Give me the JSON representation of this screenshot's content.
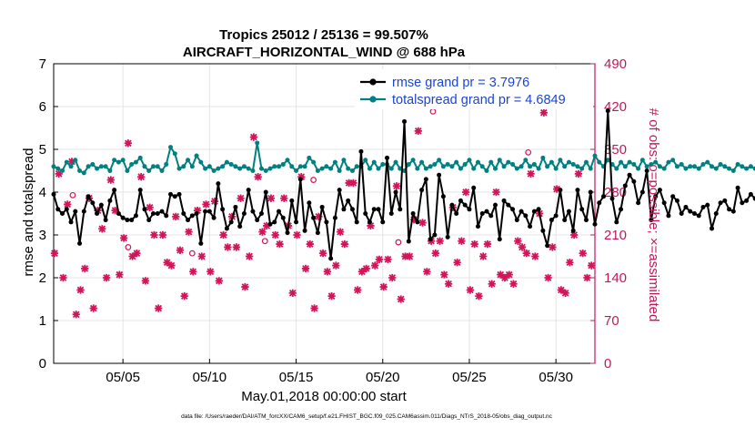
{
  "chart_data": {
    "type": "line",
    "title": "Tropics 25012 / 25136 = 99.507%",
    "subtitle": "AIRCRAFT_HORIZONTAL_WIND @ 688 hPa",
    "xlabel": "May.01,2018 00:00:00 start",
    "ylabel": "rmse and totalspread",
    "ylabel_right": "# of obs: o=possible; ×=assimilated",
    "x_range": [
      1.0,
      32.25
    ],
    "x_ticks": [
      5,
      10,
      15,
      20,
      25,
      30
    ],
    "x_tick_labels": [
      "05/05",
      "05/10",
      "05/15",
      "05/20",
      "05/25",
      "05/30"
    ],
    "ylim": [
      0,
      7
    ],
    "y_ticks": [
      0,
      1,
      2,
      3,
      4,
      5,
      6,
      7
    ],
    "y_tick_labels": [
      "0",
      "1",
      "2",
      "3",
      "4",
      "5",
      "6",
      "7"
    ],
    "y2lim": [
      0,
      490
    ],
    "y2_ticks": [
      0,
      70,
      140,
      210,
      280,
      350,
      420,
      490
    ],
    "y2_tick_labels": [
      "0",
      "70",
      "140",
      "210",
      "280",
      "350",
      "420",
      "490"
    ],
    "grid": true,
    "legend_position": "top-right",
    "colors": {
      "rmse": "#000000",
      "totalspread": "#008080",
      "obs": "#d4145a",
      "right_axis": "#c2185b",
      "legend_text": "#1a44d8",
      "grid": "#e4e4e4"
    },
    "series": [
      {
        "name": "rmse",
        "legend": "rmse grand pr = 3.7976",
        "axis": "left",
        "x_start": 1.0,
        "x_step": 0.25,
        "values": [
          3.95,
          3.6,
          3.5,
          3.6,
          3.3,
          3.55,
          2.8,
          3.55,
          3.9,
          3.75,
          3.5,
          3.7,
          3.35,
          3.8,
          4.05,
          3.5,
          3.4,
          3.35,
          3.35,
          3.45,
          4.05,
          3.6,
          3.35,
          3.5,
          3.5,
          3.55,
          3.45,
          3.95,
          3.9,
          3.95,
          3.5,
          3.35,
          3.45,
          3.5,
          2.8,
          3.55,
          3.55,
          3.4,
          4.2,
          3.6,
          3.15,
          3.3,
          3.65,
          3.2,
          3.5,
          4.05,
          3.55,
          3.35,
          3.5,
          4.0,
          3.25,
          3.3,
          3.55,
          3.4,
          3.05,
          3.8,
          3.3,
          4.3,
          3.1,
          3.75,
          3.4,
          3.05,
          3.65,
          3.3,
          2.45,
          3.4,
          4.05,
          3.6,
          3.8,
          3.6,
          3.3,
          4.95,
          3.5,
          3.3,
          3.6,
          3.6,
          3.3,
          4.8,
          3.5,
          4.0,
          3.6,
          5.65,
          2.85,
          3.5,
          3.3,
          4.05,
          4.3,
          2.9,
          3.0,
          4.4,
          3.9,
          2.95,
          3.7,
          3.5,
          3.8,
          3.7,
          3.6,
          4.1,
          3.2,
          3.5,
          3.55,
          3.45,
          3.7,
          2.9,
          3.8,
          3.7,
          3.6,
          3.35,
          3.55,
          3.45,
          3.2,
          3.55,
          3.6,
          3.1,
          2.75,
          3.35,
          3.45,
          4.05,
          3.35,
          3.55,
          3.1,
          4.05,
          3.6,
          3.35,
          4.0,
          3.25,
          3.75,
          3.9,
          5.9,
          3.85,
          3.3,
          3.6,
          4.15,
          4.4,
          4.25,
          3.75,
          4.0,
          4.5,
          3.35,
          3.9,
          4.05,
          3.75,
          3.45,
          3.9,
          3.8,
          3.5,
          3.65,
          3.55,
          3.5,
          3.45,
          3.65,
          3.7,
          3.15,
          3.5,
          3.75,
          3.8,
          3.6,
          3.55,
          4.1,
          3.75,
          3.8,
          3.95,
          3.85,
          3.65,
          3.7,
          3.7
        ]
      },
      {
        "name": "totalspread",
        "legend": "totalspread grand pr = 4.6849",
        "axis": "left",
        "x_start": 1.0,
        "x_step": 0.25,
        "values": [
          4.6,
          4.55,
          4.5,
          4.7,
          4.6,
          4.75,
          4.5,
          4.45,
          4.6,
          4.65,
          4.55,
          4.6,
          4.6,
          4.5,
          4.75,
          4.7,
          4.75,
          4.5,
          4.65,
          4.7,
          4.8,
          4.6,
          4.5,
          4.6,
          4.6,
          4.5,
          4.65,
          5.05,
          4.9,
          4.55,
          4.6,
          4.75,
          4.6,
          4.85,
          4.7,
          4.55,
          4.6,
          4.5,
          4.55,
          4.6,
          4.7,
          4.65,
          4.6,
          4.55,
          4.6,
          4.55,
          4.5,
          5.15,
          4.55,
          4.5,
          4.55,
          4.6,
          4.6,
          4.65,
          4.75,
          4.6,
          4.5,
          4.6,
          4.6,
          4.8,
          4.7,
          4.5,
          4.55,
          4.6,
          4.55,
          4.7,
          4.5,
          4.75,
          4.55,
          4.5,
          4.6,
          4.6,
          4.75,
          4.55,
          4.7,
          4.55,
          4.65,
          4.65,
          4.55,
          4.7,
          4.55,
          4.5,
          4.65,
          4.75,
          4.55,
          4.7,
          4.55,
          4.6,
          4.65,
          4.75,
          4.6,
          4.65,
          4.6,
          4.7,
          4.55,
          4.65,
          4.75,
          4.55,
          4.7,
          4.6,
          4.5,
          4.7,
          4.55,
          4.75,
          4.6,
          4.7,
          4.65,
          4.55,
          4.6,
          4.75,
          4.6,
          4.65,
          4.55,
          4.8,
          4.6,
          4.7,
          4.55,
          4.75,
          4.6,
          4.7,
          4.65,
          4.6,
          4.55,
          4.7,
          4.55,
          4.85,
          4.7,
          4.6,
          4.75,
          4.65,
          4.55,
          4.7,
          4.6,
          4.7,
          4.65,
          4.55,
          4.75,
          4.6,
          4.65,
          4.7,
          4.6,
          4.55,
          4.7,
          4.75,
          4.6,
          4.65,
          4.55,
          4.6,
          4.6,
          4.55,
          4.65,
          4.7,
          4.6,
          4.55,
          4.65,
          4.6,
          4.55,
          4.5,
          4.65,
          4.6,
          4.55,
          4.6,
          4.55,
          4.6,
          4.65,
          4.55
        ]
      },
      {
        "name": "obs_possible",
        "axis": "right",
        "marker": "o",
        "x": [
          2.1,
          5.3,
          9.0,
          13.2,
          16.0,
          20.9,
          22.9,
          28.4
        ],
        "values": [
          275,
          190,
          180,
          200,
          300,
          198,
          412,
          345
        ]
      },
      {
        "name": "obs_assimilated",
        "axis": "right",
        "marker": "x",
        "x": [
          1.05,
          1.3,
          1.55,
          1.8,
          2.05,
          2.3,
          2.55,
          2.8,
          3.05,
          3.3,
          3.55,
          3.8,
          4.05,
          4.3,
          4.55,
          4.8,
          5.05,
          5.3,
          5.55,
          5.8,
          6.05,
          6.3,
          6.55,
          6.8,
          7.05,
          7.3,
          7.55,
          7.8,
          8.05,
          8.3,
          8.55,
          8.8,
          9.05,
          9.3,
          9.55,
          9.8,
          10.05,
          10.3,
          10.55,
          10.8,
          11.05,
          11.3,
          11.55,
          11.8,
          12.05,
          12.3,
          12.55,
          12.8,
          13.05,
          13.3,
          13.55,
          13.8,
          14.05,
          14.3,
          14.55,
          14.8,
          15.05,
          15.3,
          15.55,
          15.8,
          16.05,
          16.3,
          16.55,
          16.8,
          17.05,
          17.3,
          17.55,
          17.8,
          18.05,
          18.3,
          18.55,
          18.8,
          19.05,
          19.3,
          19.55,
          19.8,
          20.05,
          20.3,
          20.55,
          20.8,
          21.05,
          21.3,
          21.55,
          21.8,
          22.05,
          22.3,
          22.55,
          22.8,
          23.05,
          23.3,
          23.55,
          23.8,
          24.05,
          24.3,
          24.55,
          24.8,
          25.05,
          25.3,
          25.55,
          25.8,
          26.05,
          26.3,
          26.55,
          26.8,
          27.05,
          27.3,
          27.55,
          27.8,
          28.05,
          28.3,
          28.55,
          28.8,
          29.05,
          29.3,
          29.55,
          29.8,
          30.05,
          30.3,
          30.55,
          30.8,
          31.05,
          31.3,
          31.55,
          31.8,
          32.05
        ],
        "values": [
          180,
          310,
          140,
          260,
          330,
          80,
          120,
          155,
          270,
          90,
          250,
          220,
          140,
          300,
          250,
          145,
          205,
          360,
          175,
          180,
          305,
          135,
          255,
          210,
          90,
          210,
          165,
          160,
          240,
          185,
          110,
          215,
          150,
          250,
          175,
          260,
          150,
          265,
          135,
          210,
          190,
          240,
          190,
          270,
          125,
          175,
          370,
          305,
          215,
          225,
          270,
          210,
          195,
          270,
          225,
          115,
          210,
          305,
          155,
          195,
          90,
          240,
          180,
          150,
          110,
          160,
          215,
          195,
          295,
          295,
          120,
          150,
          155,
          225,
          160,
          170,
          125,
          170,
          140,
          290,
          105,
          175,
          175,
          235,
          380,
          230,
          150,
          200,
          180,
          200,
          145,
          130,
          255,
          165,
          200,
          280,
          120,
          195,
          110,
          175,
          195,
          130,
          280,
          145,
          140,
          145,
          130,
          200,
          190,
          180,
          310,
          175,
          245,
          410,
          140,
          190,
          285,
          120,
          115,
          165,
          210,
          310,
          180,
          140,
          160
        ]
      }
    ],
    "footnote": "data file: /Users/raeder/DAI/ATM_forcXX/CAM6_setup/f.e21.FHIST_BGC.f09_025.CAM6assim.011/Diags_NTrS_2018-05/obs_diag_output.nc"
  }
}
